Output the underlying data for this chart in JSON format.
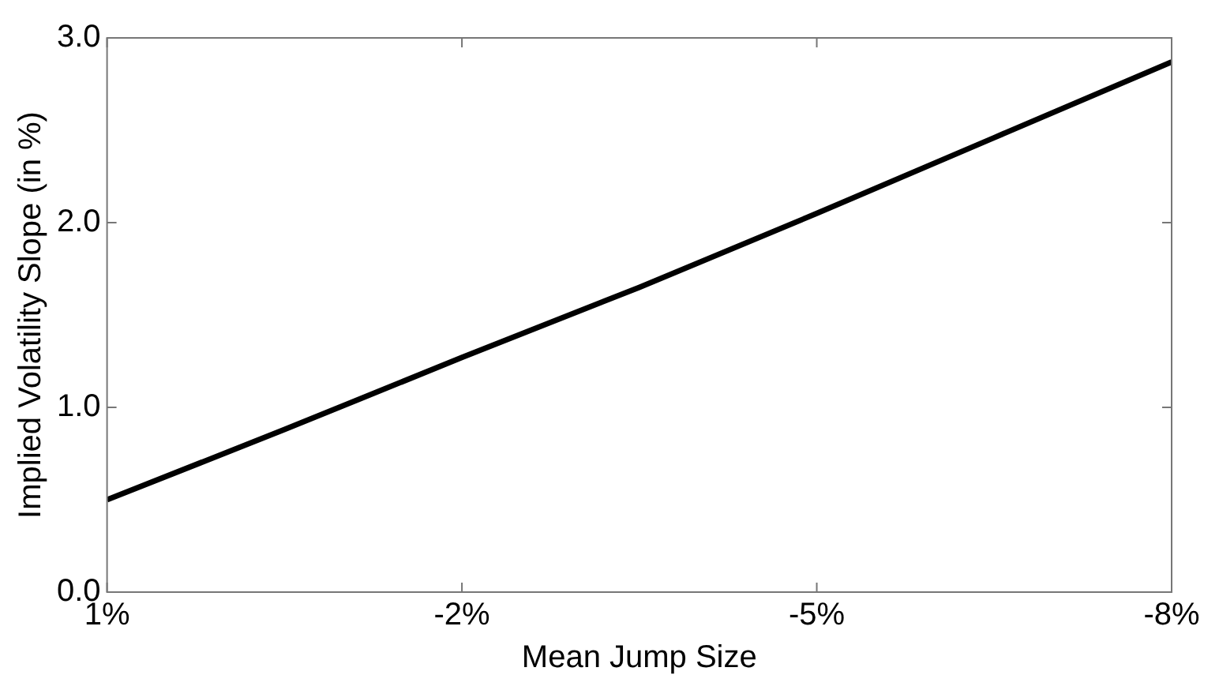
{
  "chart_data": {
    "type": "line",
    "xlabel": "Mean Jump Size",
    "ylabel": "Implied Volatility Slope (in %)",
    "x": [
      1,
      -0.5,
      -2,
      -3.5,
      -5,
      -6.5,
      -8
    ],
    "series": [
      {
        "color": "#000000",
        "values": [
          0.5,
          0.88,
          1.27,
          1.65,
          2.05,
          2.46,
          2.87
        ]
      }
    ],
    "xlim": [
      1,
      -8
    ],
    "xticks": [
      {
        "value": 1,
        "label": "1%"
      },
      {
        "value": -2,
        "label": "-2%"
      },
      {
        "value": -5,
        "label": "-5%"
      },
      {
        "value": -8,
        "label": "-8%"
      }
    ],
    "ylim": [
      0,
      3
    ],
    "yticks": [
      {
        "value": 0,
        "label": "0.0"
      },
      {
        "value": 1,
        "label": "1.0"
      },
      {
        "value": 2,
        "label": "2.0"
      },
      {
        "value": 3,
        "label": "3.0"
      }
    ],
    "grid": false,
    "legend": false,
    "marker": "none",
    "line_style": "solid"
  }
}
